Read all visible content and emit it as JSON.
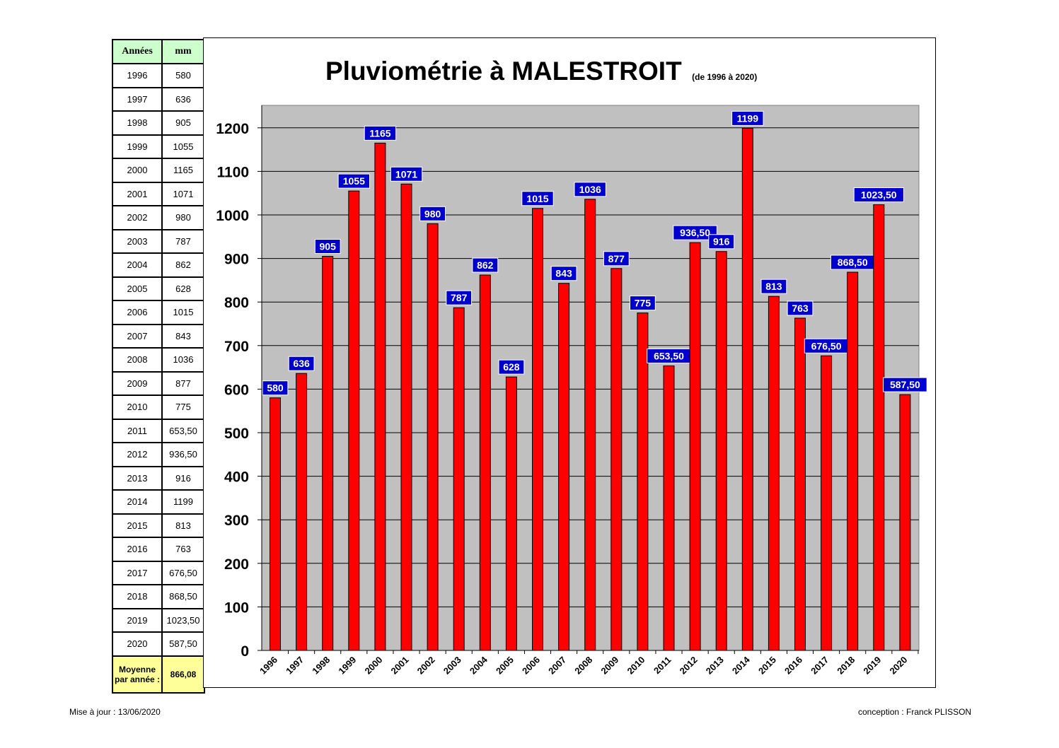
{
  "table": {
    "header_year": "Années",
    "header_mm": "mm",
    "rows": [
      {
        "year": "1996",
        "mm": "580"
      },
      {
        "year": "1997",
        "mm": "636"
      },
      {
        "year": "1998",
        "mm": "905"
      },
      {
        "year": "1999",
        "mm": "1055"
      },
      {
        "year": "2000",
        "mm": "1165"
      },
      {
        "year": "2001",
        "mm": "1071"
      },
      {
        "year": "2002",
        "mm": "980"
      },
      {
        "year": "2003",
        "mm": "787"
      },
      {
        "year": "2004",
        "mm": "862"
      },
      {
        "year": "2005",
        "mm": "628"
      },
      {
        "year": "2006",
        "mm": "1015"
      },
      {
        "year": "2007",
        "mm": "843"
      },
      {
        "year": "2008",
        "mm": "1036"
      },
      {
        "year": "2009",
        "mm": "877"
      },
      {
        "year": "2010",
        "mm": "775"
      },
      {
        "year": "2011",
        "mm": "653,50"
      },
      {
        "year": "2012",
        "mm": "936,50"
      },
      {
        "year": "2013",
        "mm": "916"
      },
      {
        "year": "2014",
        "mm": "1199"
      },
      {
        "year": "2015",
        "mm": "813"
      },
      {
        "year": "2016",
        "mm": "763"
      },
      {
        "year": "2017",
        "mm": "676,50"
      },
      {
        "year": "2018",
        "mm": "868,50"
      },
      {
        "year": "2019",
        "mm": "1023,50"
      },
      {
        "year": "2020",
        "mm": "587,50"
      }
    ],
    "average_label": "Moyenne par année :",
    "average_value": "866,08"
  },
  "chart_data": {
    "type": "bar",
    "title": "Pluviométrie à MALESTROIT",
    "subtitle": "(de 1996 à 2020)",
    "xlabel": "",
    "ylabel": "",
    "categories": [
      "1996",
      "1997",
      "1998",
      "1999",
      "2000",
      "2001",
      "2002",
      "2003",
      "2004",
      "2005",
      "2006",
      "2007",
      "2008",
      "2009",
      "2010",
      "2011",
      "2012",
      "2013",
      "2014",
      "2015",
      "2016",
      "2017",
      "2018",
      "2019",
      "2020"
    ],
    "values": [
      580,
      636,
      905,
      1055,
      1165,
      1071,
      980,
      787,
      862,
      628,
      1015,
      843,
      1036,
      877,
      775,
      653.5,
      936.5,
      916,
      1199,
      813,
      763,
      676.5,
      868.5,
      1023.5,
      587.5
    ],
    "value_labels": [
      "580",
      "636",
      "905",
      "1055",
      "1165",
      "1071",
      "980",
      "787",
      "862",
      "628",
      "1015",
      "843",
      "1036",
      "877",
      "775",
      "653,50",
      "936,50",
      "916",
      "1199",
      "813",
      "763",
      "676,50",
      "868,50",
      "1023,50",
      "587,50"
    ],
    "ylim": [
      0,
      1250
    ],
    "yticks": [
      0,
      100,
      200,
      300,
      400,
      500,
      600,
      700,
      800,
      900,
      1000,
      1100,
      1200
    ],
    "grid": true,
    "legend": "none",
    "colors": {
      "bar": "#ff0000",
      "plot_bg": "#c0c0c0",
      "label_bg": "#0000cc",
      "label_text": "#ffffff"
    }
  },
  "footer": {
    "updated": "Mise à jour : 13/06/2020",
    "credit": "conception : Franck PLISSON"
  }
}
